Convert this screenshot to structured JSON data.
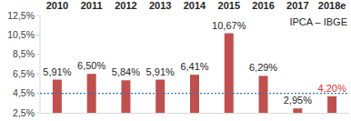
{
  "chart_data": {
    "type": "bar",
    "categories": [
      "2010",
      "2011",
      "2012",
      "2013",
      "2014",
      "2015",
      "2016",
      "2017",
      "2018e"
    ],
    "values": [
      5.91,
      6.5,
      5.84,
      5.91,
      6.41,
      10.67,
      6.29,
      2.95,
      4.2
    ],
    "value_labels": [
      "5,91%",
      "6,50%",
      "5,84%",
      "5,91%",
      "6,41%",
      "10,67%",
      "6,29%",
      "2,95%",
      "4,20%"
    ],
    "data_labels": true,
    "color": "#c0504d",
    "ylim": [
      2.5,
      12.5
    ],
    "yticks": [
      {
        "value": 2.5,
        "label": "2,5%"
      },
      {
        "value": 4.5,
        "label": "4,5%"
      },
      {
        "value": 6.5,
        "label": "6,5%"
      },
      {
        "value": 8.5,
        "label": "8,5%"
      },
      {
        "value": 10.5,
        "label": "10,5%"
      },
      {
        "value": 12.5,
        "label": "12,5%"
      }
    ],
    "grid": false,
    "target": 4.5,
    "annotation": "IPCA – IBGE"
  }
}
